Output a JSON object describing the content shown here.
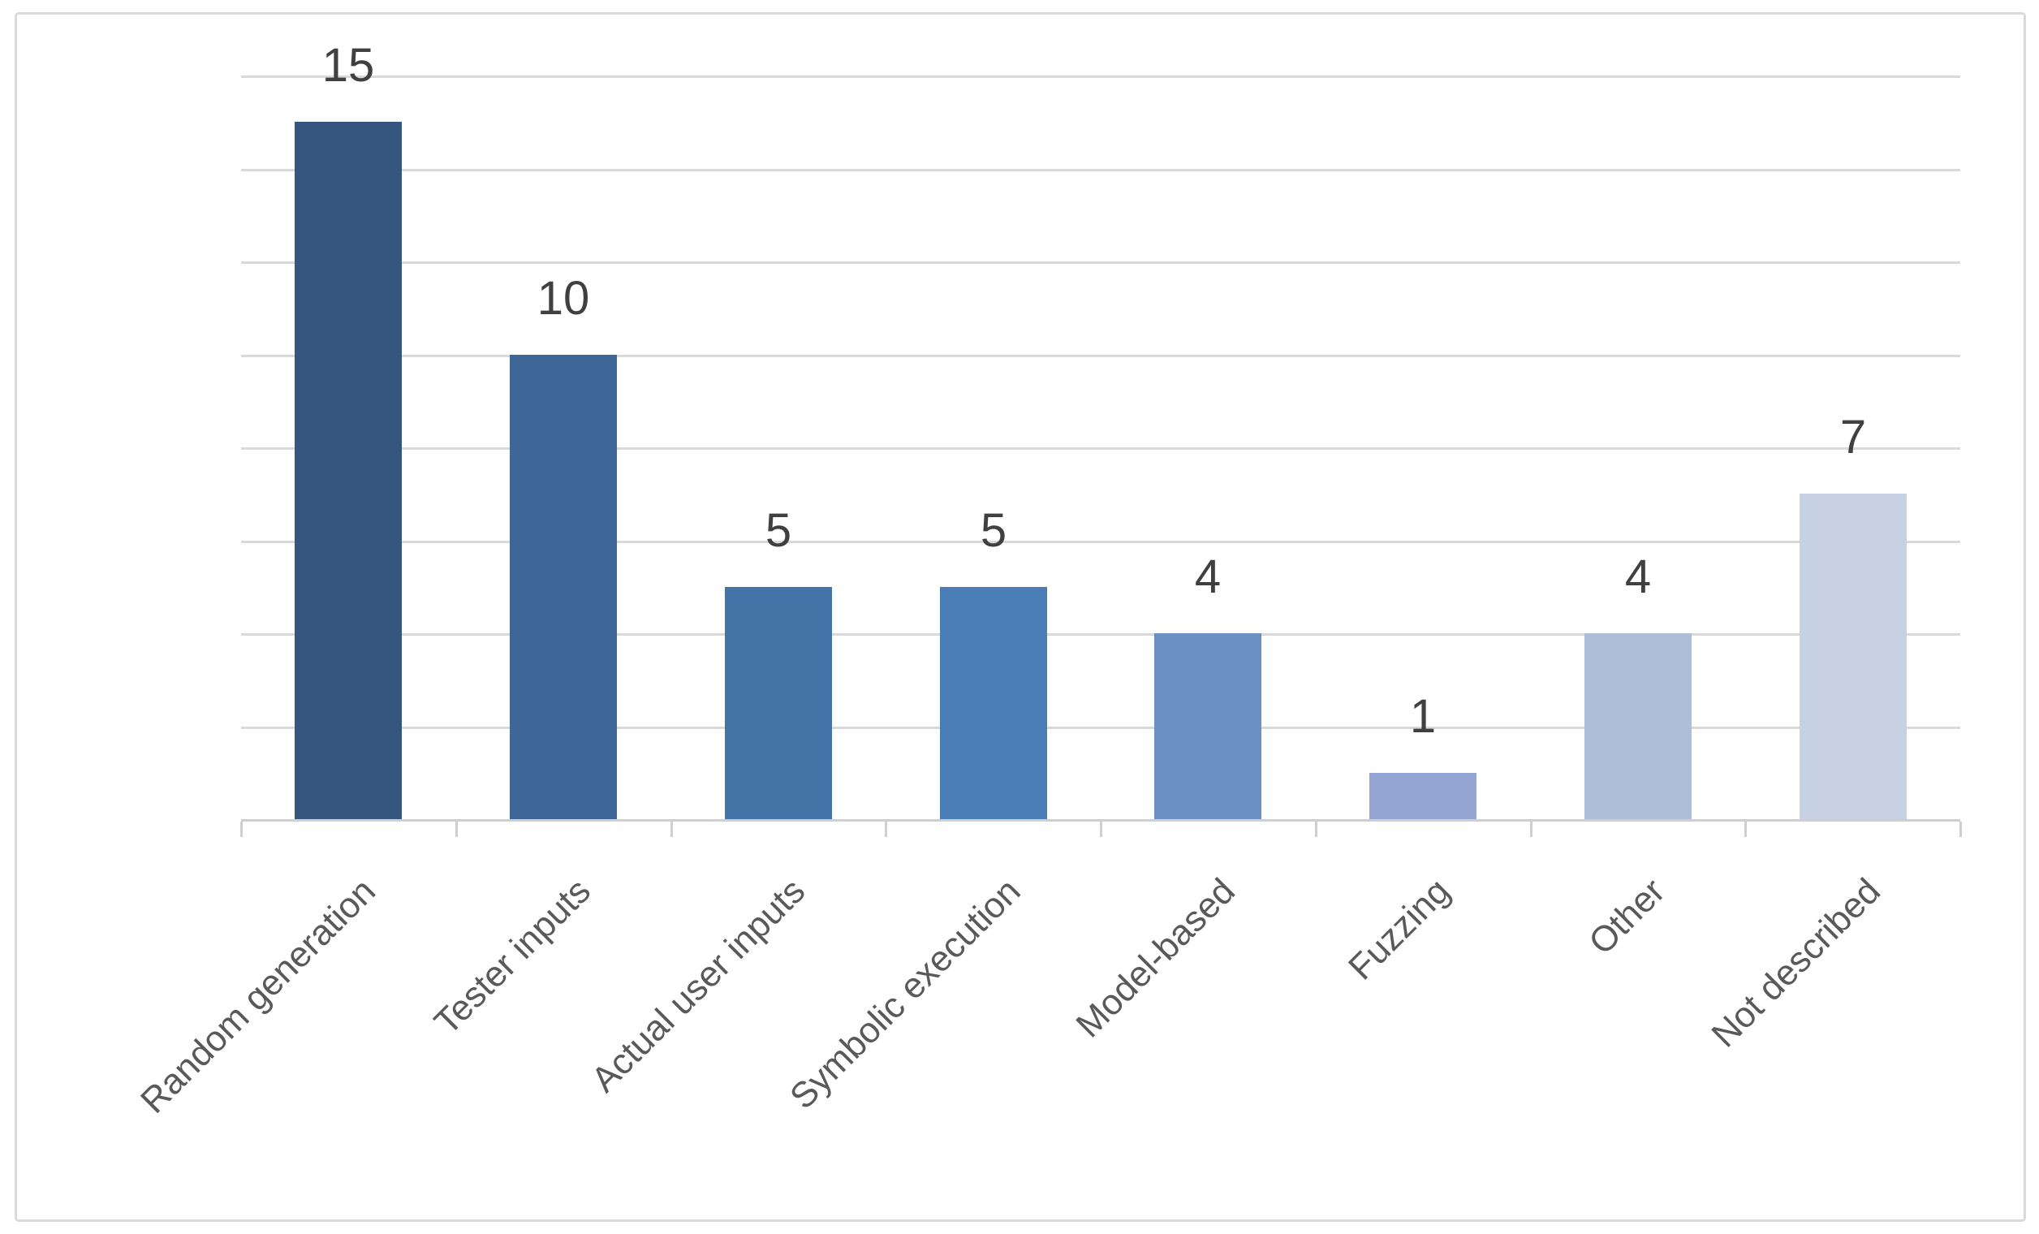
{
  "chart_data": {
    "type": "bar",
    "categories": [
      "Random generation",
      "Tester inputs",
      "Actual user inputs",
      "Symbolic execution",
      "Model-based",
      "Fuzzing",
      "Other",
      "Not described"
    ],
    "values": [
      15,
      10,
      5,
      5,
      4,
      1,
      4,
      7
    ],
    "value_labels": [
      "15",
      "10",
      "5",
      "5",
      "4",
      "1",
      "4",
      "7"
    ],
    "title": "",
    "xlabel": "",
    "ylabel": "",
    "ylim": [
      0,
      16
    ],
    "gridline_step": 2,
    "grid": true,
    "legend": "none",
    "bar_colors": [
      "#35567F",
      "#3E6697",
      "#4473A7",
      "#4A7CB5",
      "#6A90C4",
      "#93A6D4",
      "#AEBED9",
      "#C8D0E3"
    ],
    "colors": {
      "value_label": "#404040",
      "category_label": "#595959",
      "gridline": "#D9D9D9",
      "axis_line": "#CFCFCF",
      "frame_border": "#DADADA",
      "background": "#FFFFFF"
    }
  }
}
